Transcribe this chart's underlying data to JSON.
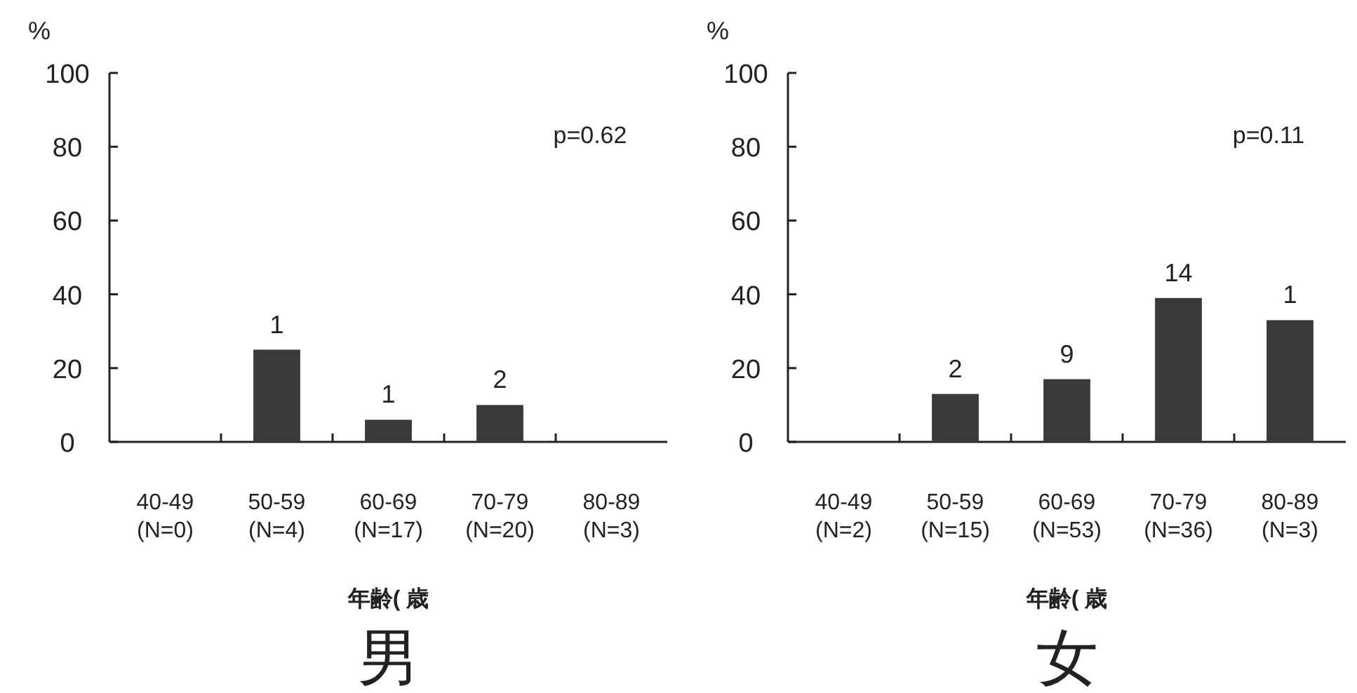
{
  "chart_data": [
    {
      "type": "bar",
      "title": "男",
      "xlabel": "年齢( 歳",
      "ylabel": "%",
      "categories": [
        "40-49\n(N=0)",
        "50-59\n(N=4)",
        "60-69\n(N=17)",
        "70-79\n(N=20)",
        "80-89\n(N=3)"
      ],
      "values": [
        null,
        25,
        6,
        10,
        0
      ],
      "color": "#3a3a3a",
      "ylim": [
        0,
        100
      ],
      "yticks": [
        0,
        20,
        40,
        60,
        80,
        100
      ],
      "annotations": [
        "p=0.62",
        {
          "text": "1",
          "x": "50-59\n(N=4)",
          "y": 25
        },
        {
          "text": "1",
          "x": "60-69\n(N=17)",
          "y": 6
        },
        {
          "text": "2",
          "x": "70-79\n(N=20)",
          "y": 10
        }
      ]
    },
    {
      "type": "bar",
      "title": "女",
      "xlabel": "年齢( 歳",
      "ylabel": "%",
      "categories": [
        "40-49\n(N=2)",
        "50-59\n(N=15)",
        "60-69\n(N=53)",
        "70-79\n(N=36)",
        "80-89\n(N=3)"
      ],
      "values": [
        0,
        13,
        17,
        39,
        33
      ],
      "color": "#3a3a3a",
      "ylim": [
        0,
        100
      ],
      "yticks": [
        0,
        20,
        40,
        60,
        80,
        100
      ],
      "annotations": [
        "p=0.11",
        {
          "text": "2",
          "x": "50-59\n(N=15)",
          "y": 13
        },
        {
          "text": "9",
          "x": "60-69\n(N=53)",
          "y": 17
        },
        {
          "text": "14",
          "x": "70-79\n(N=36)",
          "y": 39
        },
        {
          "text": "1",
          "x": "80-89\n(N=3)",
          "y": 33
        }
      ]
    }
  ]
}
